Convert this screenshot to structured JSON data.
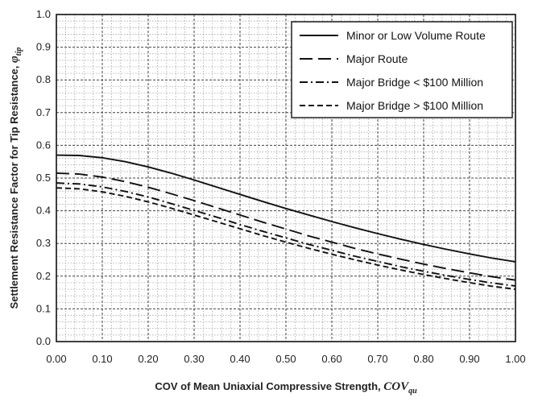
{
  "chart_data": {
    "type": "line",
    "xlabel": "COV of Mean Uniaxial Compressive Strength, ",
    "xlabel_symbol": "COV",
    "xlabel_sub": "qu",
    "ylabel": "Settlement Resistance Factor for Tip Resistance, ",
    "ylabel_symbol": "φ",
    "ylabel_sub": "tip",
    "xlim": [
      0,
      1.0
    ],
    "ylim": [
      0,
      1.0
    ],
    "x_ticks": [
      "0.00",
      "0.10",
      "0.20",
      "0.30",
      "0.40",
      "0.50",
      "0.60",
      "0.70",
      "0.80",
      "0.90",
      "1.00"
    ],
    "y_ticks": [
      "0.0",
      "0.1",
      "0.2",
      "0.3",
      "0.4",
      "0.5",
      "0.6",
      "0.7",
      "0.8",
      "0.9",
      "1.0"
    ],
    "grid": true,
    "legend_position": "top-right",
    "x": [
      0.0,
      0.05,
      0.1,
      0.15,
      0.2,
      0.25,
      0.3,
      0.35,
      0.4,
      0.45,
      0.5,
      0.55,
      0.6,
      0.65,
      0.7,
      0.75,
      0.8,
      0.85,
      0.9,
      0.95,
      1.0
    ],
    "series": [
      {
        "name": "Minor or Low Volume Route",
        "dash": "solid",
        "values": [
          0.57,
          0.569,
          0.562,
          0.55,
          0.534,
          0.515,
          0.494,
          0.472,
          0.45,
          0.428,
          0.407,
          0.387,
          0.367,
          0.348,
          0.33,
          0.313,
          0.297,
          0.282,
          0.268,
          0.255,
          0.244
        ]
      },
      {
        "name": "Major Route",
        "dash": "long-dash",
        "values": [
          0.515,
          0.512,
          0.503,
          0.489,
          0.472,
          0.452,
          0.431,
          0.409,
          0.387,
          0.365,
          0.344,
          0.323,
          0.304,
          0.285,
          0.268,
          0.252,
          0.237,
          0.223,
          0.21,
          0.198,
          0.188
        ]
      },
      {
        "name": "Major Bridge < $100 Million",
        "dash": "dash-dot",
        "values": [
          0.485,
          0.482,
          0.473,
          0.459,
          0.442,
          0.422,
          0.401,
          0.38,
          0.358,
          0.337,
          0.317,
          0.297,
          0.279,
          0.261,
          0.245,
          0.229,
          0.215,
          0.202,
          0.19,
          0.179,
          0.17
        ]
      },
      {
        "name": "Major Bridge > $100 Million",
        "dash": "short-dash",
        "values": [
          0.47,
          0.467,
          0.458,
          0.444,
          0.427,
          0.408,
          0.387,
          0.366,
          0.345,
          0.324,
          0.304,
          0.285,
          0.267,
          0.25,
          0.234,
          0.219,
          0.205,
          0.192,
          0.18,
          0.169,
          0.16
        ]
      }
    ]
  }
}
